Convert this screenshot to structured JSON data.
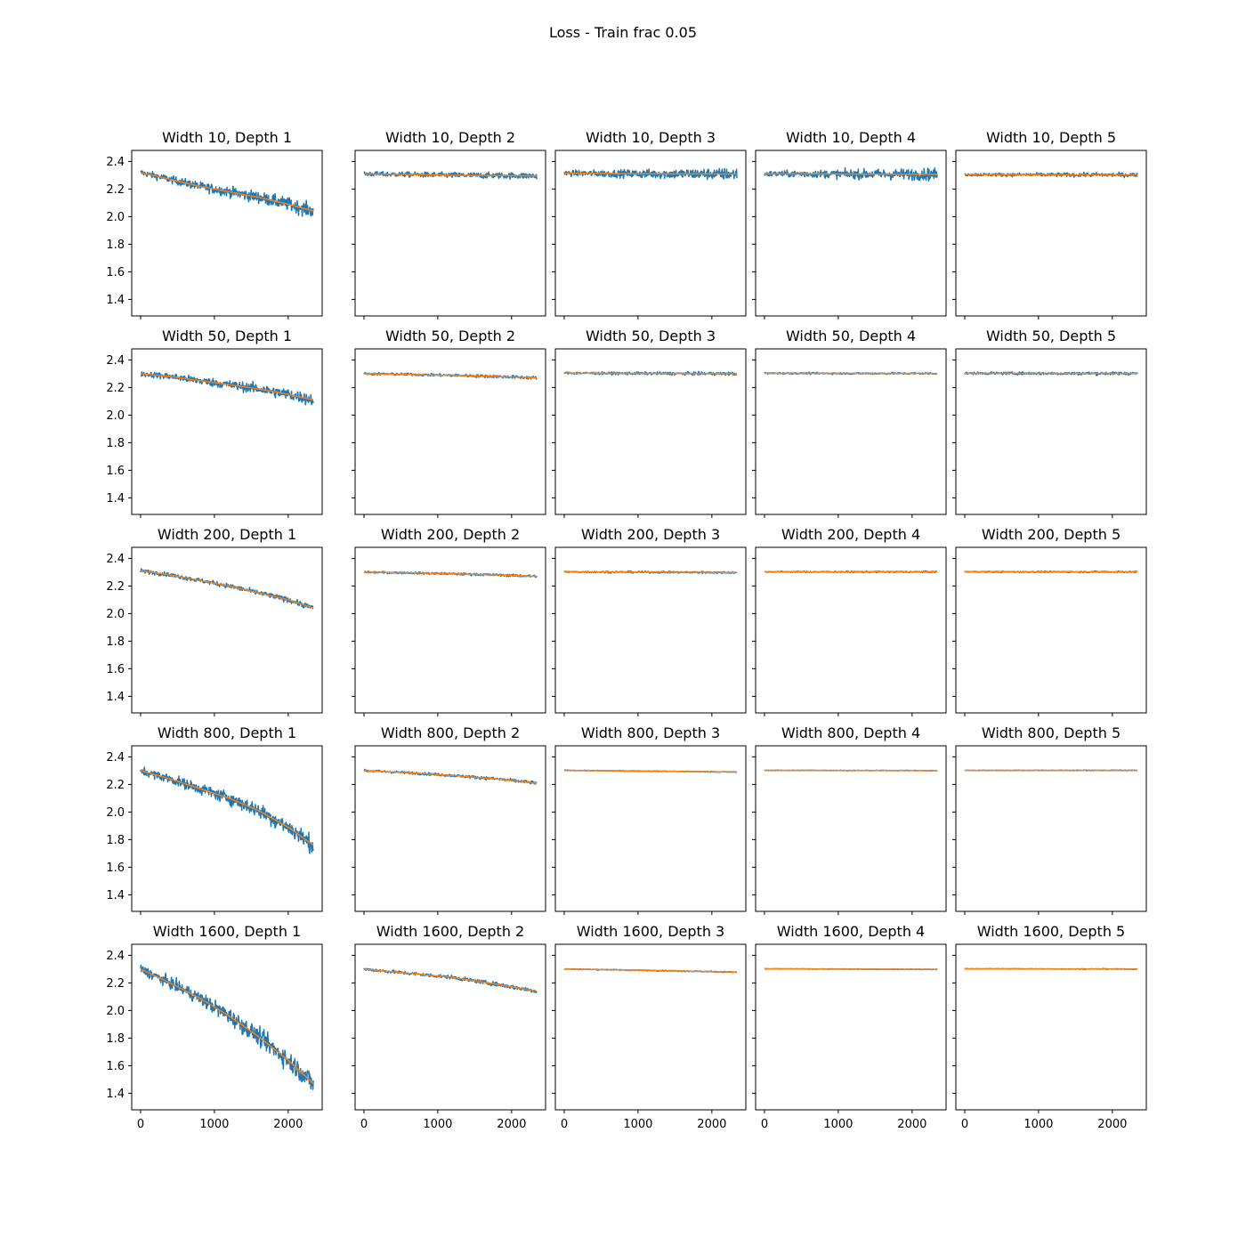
{
  "suptitle": "Loss - Train frac 0.05",
  "colors": {
    "raw": "#1f77b4",
    "smooth": "#ff7f0e",
    "axes": "#000000"
  },
  "chart_data": {
    "type": "line",
    "layout": "5x5 grid of subplots, shared x and y axes",
    "series_legend": [
      {
        "name": "",
        "color": "#1f77b4",
        "style": "raw noisy loss"
      },
      {
        "name": "",
        "color": "#ff7f0e",
        "style": "smoothed loss"
      }
    ],
    "x_ticks": [
      0,
      1000,
      2000
    ],
    "y_ticks": [
      1.4,
      1.6,
      1.8,
      2.0,
      2.2,
      2.4
    ],
    "y_tick_labels": [
      "1.4",
      "1.6",
      "1.8",
      "2.0",
      "2.2",
      "2.4"
    ],
    "xlim": [
      -120,
      2460
    ],
    "ylim": [
      1.28,
      2.48
    ],
    "grid": false,
    "panels": [
      {
        "title": "Width 10, Depth 1",
        "x": [
          0,
          400,
          800,
          1200,
          1600,
          2000,
          2340
        ],
        "y": [
          2.32,
          2.27,
          2.22,
          2.18,
          2.14,
          2.09,
          2.04
        ],
        "noise": 0.04
      },
      {
        "title": "Width 10, Depth 2",
        "x": [
          0,
          600,
          1200,
          1800,
          2340
        ],
        "y": [
          2.31,
          2.305,
          2.3,
          2.298,
          2.295
        ],
        "noise": 0.03
      },
      {
        "title": "Width 10, Depth 3",
        "x": [
          0,
          600,
          1200,
          1800,
          2340
        ],
        "y": [
          2.315,
          2.312,
          2.31,
          2.31,
          2.308
        ],
        "noise": 0.035
      },
      {
        "title": "Width 10, Depth 4",
        "x": [
          0,
          600,
          1200,
          1800,
          2340
        ],
        "y": [
          2.31,
          2.31,
          2.308,
          2.307,
          2.306
        ],
        "noise": 0.035
      },
      {
        "title": "Width 10, Depth 5",
        "x": [
          0,
          600,
          1200,
          1800,
          2340
        ],
        "y": [
          2.305,
          2.304,
          2.303,
          2.303,
          2.302
        ],
        "noise": 0.02
      },
      {
        "title": "Width 50, Depth 1",
        "x": [
          0,
          400,
          800,
          1200,
          1600,
          2000,
          2340
        ],
        "y": [
          2.3,
          2.28,
          2.25,
          2.22,
          2.19,
          2.15,
          2.11
        ],
        "noise": 0.035
      },
      {
        "title": "Width 50, Depth 2",
        "x": [
          0,
          600,
          1200,
          1800,
          2340
        ],
        "y": [
          2.3,
          2.295,
          2.288,
          2.28,
          2.27
        ],
        "noise": 0.015
      },
      {
        "title": "Width 50, Depth 3",
        "x": [
          0,
          600,
          1200,
          1800,
          2340
        ],
        "y": [
          2.305,
          2.303,
          2.302,
          2.301,
          2.3
        ],
        "noise": 0.015
      },
      {
        "title": "Width 50, Depth 4",
        "x": [
          0,
          600,
          1200,
          1800,
          2340
        ],
        "y": [
          2.303,
          2.303,
          2.302,
          2.302,
          2.302
        ],
        "noise": 0.01
      },
      {
        "title": "Width 50, Depth 5",
        "x": [
          0,
          600,
          1200,
          1800,
          2340
        ],
        "y": [
          2.303,
          2.303,
          2.302,
          2.302,
          2.302
        ],
        "noise": 0.015
      },
      {
        "title": "Width 200, Depth 1",
        "x": [
          0,
          400,
          800,
          1200,
          1600,
          2000,
          2340
        ],
        "y": [
          2.31,
          2.28,
          2.24,
          2.2,
          2.15,
          2.1,
          2.04
        ],
        "noise": 0.025
      },
      {
        "title": "Width 200, Depth 2",
        "x": [
          0,
          600,
          1200,
          1800,
          2340
        ],
        "y": [
          2.3,
          2.295,
          2.288,
          2.28,
          2.27
        ],
        "noise": 0.012
      },
      {
        "title": "Width 200, Depth 3",
        "x": [
          0,
          600,
          1200,
          1800,
          2340
        ],
        "y": [
          2.302,
          2.301,
          2.3,
          2.299,
          2.297
        ],
        "noise": 0.01
      },
      {
        "title": "Width 200, Depth 4",
        "x": [
          0,
          600,
          1200,
          1800,
          2340
        ],
        "y": [
          2.303,
          2.302,
          2.302,
          2.302,
          2.302
        ],
        "noise": 0.008
      },
      {
        "title": "Width 200, Depth 5",
        "x": [
          0,
          600,
          1200,
          1800,
          2340
        ],
        "y": [
          2.303,
          2.302,
          2.302,
          2.302,
          2.302
        ],
        "noise": 0.008
      },
      {
        "title": "Width 800, Depth 1",
        "x": [
          0,
          400,
          800,
          1200,
          1600,
          2000,
          2340
        ],
        "y": [
          2.3,
          2.24,
          2.17,
          2.1,
          2.01,
          1.89,
          1.76
        ],
        "noise": 0.05
      },
      {
        "title": "Width 800, Depth 2",
        "x": [
          0,
          600,
          1200,
          1800,
          2340
        ],
        "y": [
          2.3,
          2.285,
          2.265,
          2.24,
          2.21
        ],
        "noise": 0.015
      },
      {
        "title": "Width 800, Depth 3",
        "x": [
          0,
          600,
          1200,
          1800,
          2340
        ],
        "y": [
          2.302,
          2.299,
          2.296,
          2.293,
          2.29
        ],
        "noise": 0.005
      },
      {
        "title": "Width 800, Depth 4",
        "x": [
          0,
          600,
          1200,
          1800,
          2340
        ],
        "y": [
          2.302,
          2.302,
          2.301,
          2.301,
          2.3
        ],
        "noise": 0.004
      },
      {
        "title": "Width 800, Depth 5",
        "x": [
          0,
          600,
          1200,
          1800,
          2340
        ],
        "y": [
          2.302,
          2.302,
          2.302,
          2.302,
          2.302
        ],
        "noise": 0.004
      },
      {
        "title": "Width 1600, Depth 1",
        "x": [
          0,
          400,
          800,
          1200,
          1600,
          2000,
          2340
        ],
        "y": [
          2.3,
          2.2,
          2.09,
          1.96,
          1.81,
          1.64,
          1.47
        ],
        "noise": 0.06
      },
      {
        "title": "Width 1600, Depth 2",
        "x": [
          0,
          600,
          1200,
          1800,
          2340
        ],
        "y": [
          2.3,
          2.27,
          2.24,
          2.19,
          2.14
        ],
        "noise": 0.02
      },
      {
        "title": "Width 1600, Depth 3",
        "x": [
          0,
          600,
          1200,
          1800,
          2340
        ],
        "y": [
          2.301,
          2.296,
          2.29,
          2.284,
          2.278
        ],
        "noise": 0.006
      },
      {
        "title": "Width 1600, Depth 4",
        "x": [
          0,
          600,
          1200,
          1800,
          2340
        ],
        "y": [
          2.302,
          2.301,
          2.3,
          2.299,
          2.298
        ],
        "noise": 0.004
      },
      {
        "title": "Width 1600, Depth 5",
        "x": [
          0,
          600,
          1200,
          1800,
          2340
        ],
        "y": [
          2.302,
          2.302,
          2.301,
          2.301,
          2.3
        ],
        "noise": 0.004
      }
    ]
  }
}
